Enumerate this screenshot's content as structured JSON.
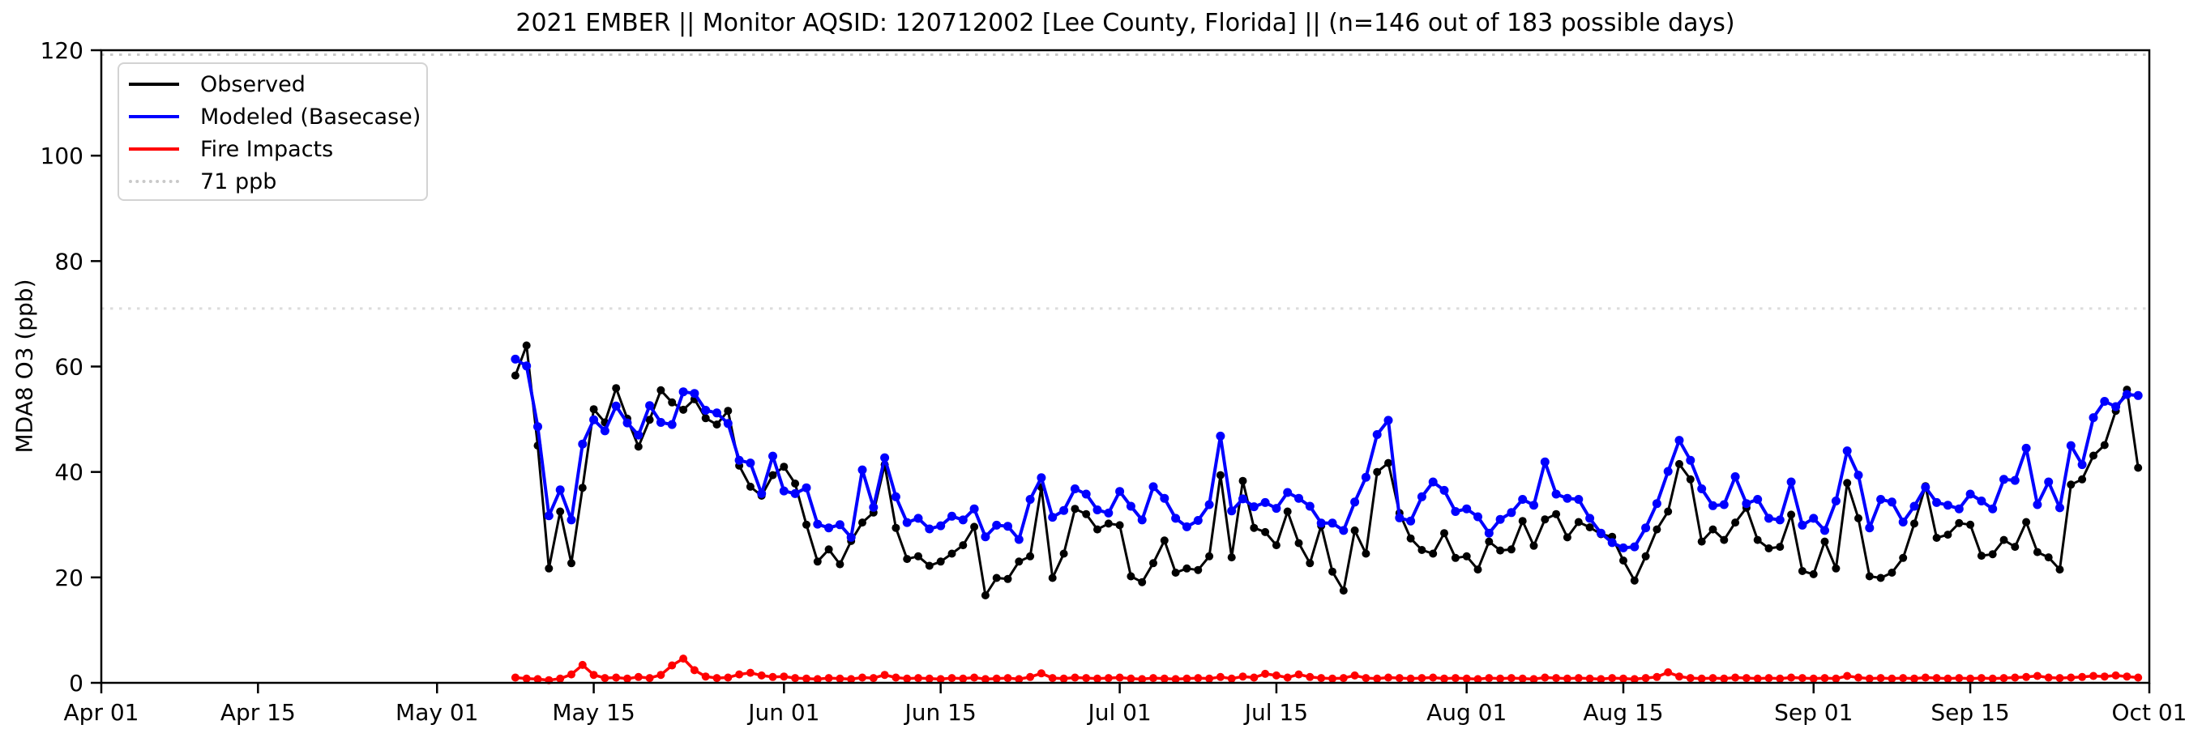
{
  "title": "2021 EMBER || Monitor AQSID: 120712002 [Lee County, Florida] || (n=146 out of 183 possible days)",
  "chart_data": {
    "type": "line",
    "title": "2021 EMBER || Monitor AQSID: 120712002 [Lee County, Florida] || (n=146 out of 183 possible days)",
    "xlabel": "",
    "ylabel": "MDA8 O3 (ppb)",
    "ylim": [
      0,
      120
    ],
    "yticks": [
      0,
      20,
      40,
      60,
      80,
      100,
      120
    ],
    "x_total_days": 183,
    "xticks": [
      {
        "label": "Apr 01",
        "day": 0
      },
      {
        "label": "Apr 15",
        "day": 14
      },
      {
        "label": "May 01",
        "day": 30
      },
      {
        "label": "May 15",
        "day": 44
      },
      {
        "label": "Jun 01",
        "day": 61
      },
      {
        "label": "Jun 15",
        "day": 75
      },
      {
        "label": "Jul 01",
        "day": 91
      },
      {
        "label": "Jul 15",
        "day": 105
      },
      {
        "label": "Aug 01",
        "day": 122
      },
      {
        "label": "Aug 15",
        "day": 136
      },
      {
        "label": "Sep 01",
        "day": 153
      },
      {
        "label": "Sep 15",
        "day": 167
      },
      {
        "label": "Oct 01",
        "day": 183
      }
    ],
    "legend_position": "upper left",
    "threshold": {
      "label": "71 ppb",
      "value": 71,
      "color": "#dcdcdc",
      "style": "dotted"
    },
    "series_start_day": 37,
    "start_date": "May 08",
    "end_date": "Sep 30",
    "frequency": "daily",
    "n_observed_days": 146,
    "series": [
      {
        "name": "Observed",
        "color": "#000000",
        "values": [
          58.3,
          64,
          45,
          21.7,
          32.5,
          22.7,
          37,
          51.9,
          49.4,
          55.9,
          50.1,
          44.8,
          49.9,
          55.5,
          53.2,
          51.8,
          53.8,
          50.2,
          49,
          51.6,
          41.2,
          37.2,
          35.5,
          39.4,
          41,
          37.8,
          30,
          23,
          25.3,
          22.5,
          26.9,
          30.4,
          32.3,
          41.4,
          29.4,
          23.5,
          24,
          22.2,
          23,
          24.5,
          26.1,
          29.6,
          16.6,
          19.9,
          19.7,
          23,
          24,
          37.1,
          19.9,
          24.5,
          33,
          32,
          29.1,
          30.2,
          29.9,
          20.2,
          19.1,
          22.7,
          27,
          20.9,
          21.7,
          21.4,
          24,
          39.4,
          23.8,
          38.3,
          29.4,
          28.6,
          26.1,
          32.5,
          26.5,
          22.7,
          29.8,
          21.1,
          17.5,
          28.9,
          24.5,
          40,
          41.7,
          32.2,
          27.4,
          25.2,
          24.5,
          28.4,
          23.7,
          24,
          21.5,
          26.8,
          25.1,
          25.3,
          30.7,
          26,
          31,
          32,
          27.6,
          30.5,
          29.5,
          28.2,
          27.7,
          23.2,
          19.4,
          24,
          29.1,
          32.5,
          41.5,
          38.6,
          26.8,
          29.1,
          27.1,
          30.4,
          33.2,
          27.1,
          25.5,
          25.8,
          31.9,
          21.2,
          20.6,
          26.8,
          21.7,
          37.9,
          31.2,
          20.2,
          19.9,
          20.9,
          23.7,
          30.2,
          37.3,
          27.5,
          28.1,
          30.3,
          30,
          24.1,
          24.4,
          27.1,
          25.8,
          30.5,
          24.8,
          23.8,
          21.5,
          37.6,
          38.6,
          43.1,
          45.1,
          51.6,
          55.6,
          40.8
        ]
      },
      {
        "name": "Modeled (Basecase)",
        "color": "#0000ff",
        "values": [
          61.4,
          60.1,
          48.6,
          31.7,
          36.6,
          30.9,
          45.3,
          49.9,
          47.8,
          52.5,
          49.3,
          47,
          52.6,
          49.4,
          49,
          55.2,
          54.9,
          51.7,
          51.2,
          49.2,
          42.2,
          41.7,
          35.9,
          43,
          36.4,
          35.9,
          37,
          30.1,
          29.4,
          30,
          27.6,
          40.4,
          33.3,
          42.7,
          35.3,
          30.4,
          31.2,
          29.2,
          29.8,
          31.6,
          30.9,
          33,
          27.7,
          29.9,
          29.7,
          27.2,
          34.8,
          38.9,
          31.4,
          32.7,
          36.8,
          35.8,
          32.8,
          32.2,
          36.3,
          33.5,
          30.9,
          37.2,
          35,
          31.2,
          29.6,
          30.8,
          33.8,
          46.8,
          32.6,
          34.9,
          33.4,
          34.2,
          33.1,
          36.1,
          35,
          33.5,
          30.3,
          30.3,
          28.9,
          34.3,
          39,
          47.1,
          49.8,
          31.3,
          30.7,
          35.3,
          38.1,
          36.5,
          32.5,
          33,
          31.5,
          28.4,
          31,
          32.3,
          34.8,
          33.7,
          41.9,
          35.8,
          35,
          34.8,
          31.2,
          28.4,
          26.6,
          25.6,
          25.8,
          29.4,
          34,
          40.1,
          46,
          42.2,
          36.8,
          33.6,
          33.8,
          39.1,
          34,
          34.8,
          31.2,
          30.9,
          38.1,
          29.9,
          31.2,
          28.9,
          34.5,
          44,
          39.4,
          29.4,
          34.8,
          34.3,
          30.5,
          33.5,
          37.1,
          34.2,
          33.7,
          33,
          35.8,
          34.5,
          33,
          38.6,
          38.4,
          44.5,
          33.8,
          38.1,
          33.2,
          45,
          41.4,
          50.3,
          53.4,
          52.4,
          54.7,
          54.5
        ]
      },
      {
        "name": "Fire Impacts",
        "color": "#ff0000",
        "values": [
          1,
          0.8,
          0.7,
          0.5,
          0.8,
          1.6,
          3.4,
          1.5,
          0.9,
          1,
          0.8,
          1.1,
          0.9,
          1.5,
          3.3,
          4.6,
          2.4,
          1.2,
          0.9,
          1,
          1.6,
          1.9,
          1.4,
          1.1,
          1.2,
          0.9,
          0.8,
          0.7,
          0.9,
          0.8,
          0.7,
          1,
          0.9,
          1.5,
          1,
          0.8,
          0.9,
          0.8,
          0.7,
          0.9,
          0.8,
          1,
          0.7,
          0.8,
          0.9,
          0.7,
          1.1,
          1.8,
          0.9,
          0.8,
          1,
          0.9,
          0.8,
          0.9,
          1,
          0.8,
          0.7,
          0.9,
          0.8,
          0.7,
          0.8,
          0.9,
          0.8,
          1.1,
          0.8,
          1.2,
          1,
          1.7,
          1.4,
          1,
          1.6,
          1.1,
          0.9,
          0.8,
          0.9,
          1.4,
          0.9,
          0.8,
          1,
          0.9,
          0.8,
          0.9,
          1,
          0.8,
          0.9,
          0.8,
          0.7,
          0.9,
          0.8,
          0.9,
          0.8,
          0.7,
          1,
          0.9,
          0.8,
          0.9,
          0.8,
          0.7,
          0.9,
          0.8,
          0.7,
          0.9,
          1.1,
          2,
          1.2,
          0.9,
          0.8,
          0.9,
          0.8,
          1,
          0.9,
          0.8,
          0.9,
          0.8,
          1,
          0.9,
          0.8,
          0.9,
          0.8,
          1.3,
          1,
          0.8,
          0.9,
          0.8,
          0.9,
          0.8,
          1,
          0.9,
          0.8,
          0.9,
          0.8,
          0.9,
          0.8,
          0.9,
          1,
          1.1,
          1.3,
          1,
          0.9,
          1,
          1.1,
          1.3,
          1.2,
          1.4,
          1.2,
          1
        ]
      }
    ]
  }
}
